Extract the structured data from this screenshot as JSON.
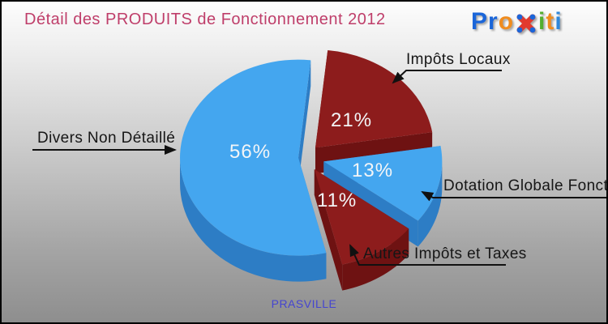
{
  "header": {
    "title": "Détail des PRODUITS de Fonctionnement 2012",
    "title_color": "#bf3e6a",
    "logo": {
      "name": "Proxiti",
      "letters": [
        {
          "text": "Pr",
          "color": "#1b66d9"
        },
        {
          "text": "o",
          "color": "#f08c1e"
        },
        {
          "text": "i",
          "color": "#53ae2f"
        },
        {
          "text": "t",
          "color": "#f08c1e"
        },
        {
          "text": "i",
          "color": "#2f87da"
        }
      ],
      "x_icon": {
        "stroke": "#e23a2e",
        "dot_color": "#1b66d9"
      }
    }
  },
  "chart_data": {
    "type": "pie",
    "style": "3d-exploded",
    "title": "Détail des PRODUITS de Fonctionnement 2012",
    "unit": "%",
    "legend_position": "callouts",
    "slices": [
      {
        "id": "impots-locaux",
        "label": "Impôts Locaux",
        "value": 21,
        "pct": "21%",
        "color": "#8d1c1c",
        "side_color": "#6e1212"
      },
      {
        "id": "dotation-globale",
        "label": "Dotation Globale Fonction",
        "value": 13,
        "pct": "13%",
        "color": "#44a6ef",
        "side_color": "#2d7dc5"
      },
      {
        "id": "autres-impots",
        "label": "Autres Impôts et Taxes",
        "value": 11,
        "pct": "11%",
        "color": "#8d1c1c",
        "side_color": "#6e1212"
      },
      {
        "id": "divers",
        "label": "Divers Non Détaillé",
        "value": 56,
        "pct": "56%",
        "color": "#44a6ef",
        "side_color": "#2d7dc5"
      }
    ]
  },
  "footer": {
    "municipality": "PRASVILLE",
    "color": "#4545d0"
  }
}
